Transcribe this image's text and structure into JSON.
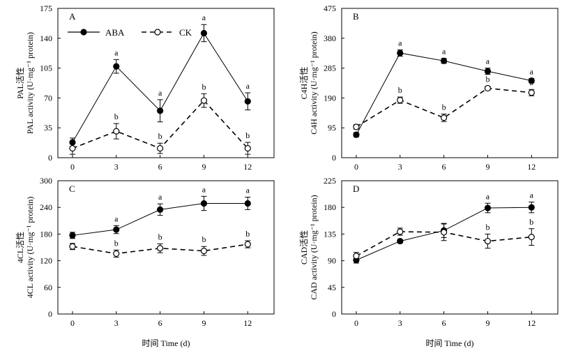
{
  "xlabel": "时间 Time (d)",
  "colors": {
    "axis": "#000000",
    "ABA": "#000000",
    "CK": "#000000"
  },
  "legend": {
    "placement": "top-left of panel A",
    "items": [
      {
        "name": "ABA",
        "marker": "filled-circle",
        "line": "solid"
      },
      {
        "name": "CK",
        "marker": "open-circle",
        "line": "dashed"
      }
    ]
  },
  "chart_data": [
    {
      "type": "line",
      "panel": "A",
      "ylabel_cn": "PAL活性",
      "ylabel_en": "PAL activity (U·mg⁻¹ protein)",
      "x": [
        0,
        3,
        6,
        9,
        12
      ],
      "ylim": [
        0,
        175
      ],
      "yticks": [
        0,
        35,
        70,
        105,
        140,
        175
      ],
      "series": [
        {
          "name": "ABA",
          "values": [
            18,
            107,
            55,
            146,
            66
          ],
          "errors": [
            5,
            8,
            13,
            10,
            10
          ],
          "labels": [
            "",
            "a",
            "a",
            "a",
            "a"
          ]
        },
        {
          "name": "CK",
          "values": [
            11,
            31,
            11,
            67,
            11
          ],
          "errors": [
            7,
            9,
            6,
            8,
            7
          ],
          "labels": [
            "",
            "b",
            "b",
            "b",
            "b"
          ]
        }
      ]
    },
    {
      "type": "line",
      "panel": "B",
      "ylabel_cn": "C4H活性",
      "ylabel_en": "C4H activity (U·mg⁻¹ protein)",
      "x": [
        0,
        3,
        6,
        9,
        12
      ],
      "ylim": [
        0,
        475
      ],
      "yticks": [
        0,
        95,
        190,
        285,
        380,
        475
      ],
      "series": [
        {
          "name": "ABA",
          "values": [
            73,
            333,
            308,
            275,
            245
          ],
          "errors": [
            7,
            10,
            8,
            10,
            7
          ],
          "labels": [
            "",
            "a",
            "a",
            "a",
            "a"
          ]
        },
        {
          "name": "CK",
          "values": [
            98,
            183,
            127,
            221,
            207
          ],
          "errors": [
            7,
            10,
            12,
            6,
            10
          ],
          "labels": [
            "",
            "b",
            "b",
            "b",
            "b"
          ]
        }
      ]
    },
    {
      "type": "line",
      "panel": "C",
      "ylabel_cn": "4CL活性",
      "ylabel_en": "4CL activity (U·mg⁻¹ protein)",
      "x": [
        0,
        3,
        6,
        9,
        12
      ],
      "ylim": [
        0,
        300
      ],
      "yticks": [
        0,
        60,
        120,
        180,
        240,
        300
      ],
      "series": [
        {
          "name": "ABA",
          "values": [
            177,
            190,
            235,
            249,
            249
          ],
          "errors": [
            7,
            9,
            13,
            16,
            14
          ],
          "labels": [
            "",
            "a",
            "a",
            "a",
            "a"
          ]
        },
        {
          "name": "CK",
          "values": [
            152,
            136,
            148,
            142,
            157
          ],
          "errors": [
            7,
            8,
            10,
            10,
            8
          ],
          "labels": [
            "",
            "b",
            "b",
            "b",
            "b"
          ]
        }
      ]
    },
    {
      "type": "line",
      "panel": "D",
      "ylabel_cn": "CAD活性",
      "ylabel_en": "CAD activity (U·mg⁻¹ protein)",
      "x": [
        0,
        3,
        6,
        9,
        12
      ],
      "ylim": [
        0,
        225
      ],
      "yticks": [
        0,
        45,
        90,
        135,
        180,
        225
      ],
      "series": [
        {
          "name": "ABA",
          "values": [
            91,
            123,
            141,
            179,
            180
          ],
          "errors": [
            5,
            3,
            12,
            8,
            9
          ],
          "labels": [
            "",
            "",
            "",
            "a",
            "a"
          ]
        },
        {
          "name": "CK",
          "values": [
            98,
            139,
            138,
            123,
            130
          ],
          "errors": [
            6,
            6,
            14,
            12,
            14
          ],
          "labels": [
            "",
            "",
            "",
            "b",
            "b"
          ]
        }
      ]
    }
  ]
}
